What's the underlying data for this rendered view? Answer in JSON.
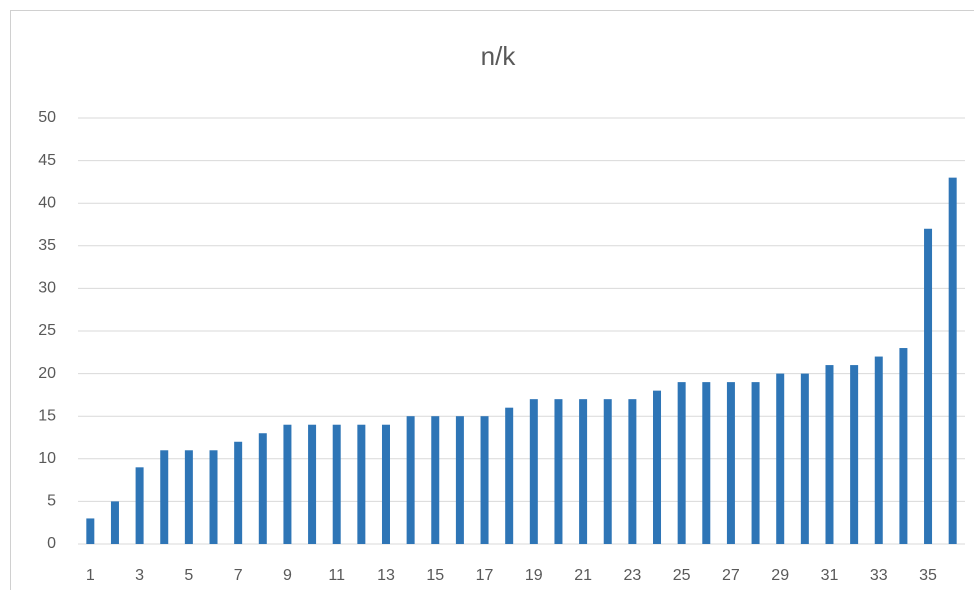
{
  "chart_data": {
    "type": "bar",
    "title": "n/k",
    "categories": [
      "1",
      null,
      "3",
      null,
      "5",
      null,
      "7",
      null,
      "9",
      null,
      "11",
      null,
      "13",
      null,
      "15",
      null,
      "17",
      null,
      "19",
      null,
      "21",
      null,
      "23",
      null,
      "25",
      null,
      "27",
      null,
      "29",
      null,
      "31",
      null,
      "33",
      null,
      "35",
      null
    ],
    "values": [
      3,
      5,
      9,
      11,
      11,
      11,
      12,
      13,
      14,
      14,
      14,
      14,
      14,
      15,
      15,
      15,
      15,
      16,
      17,
      17,
      17,
      17,
      17,
      18,
      19,
      19,
      19,
      19,
      20,
      20,
      21,
      21,
      22,
      23,
      37,
      43
    ],
    "color": "#2e75b6",
    "ylim": [
      0,
      50
    ],
    "yticks": [
      0,
      5,
      10,
      15,
      20,
      25,
      30,
      35,
      40,
      45,
      50
    ],
    "grid": true
  }
}
